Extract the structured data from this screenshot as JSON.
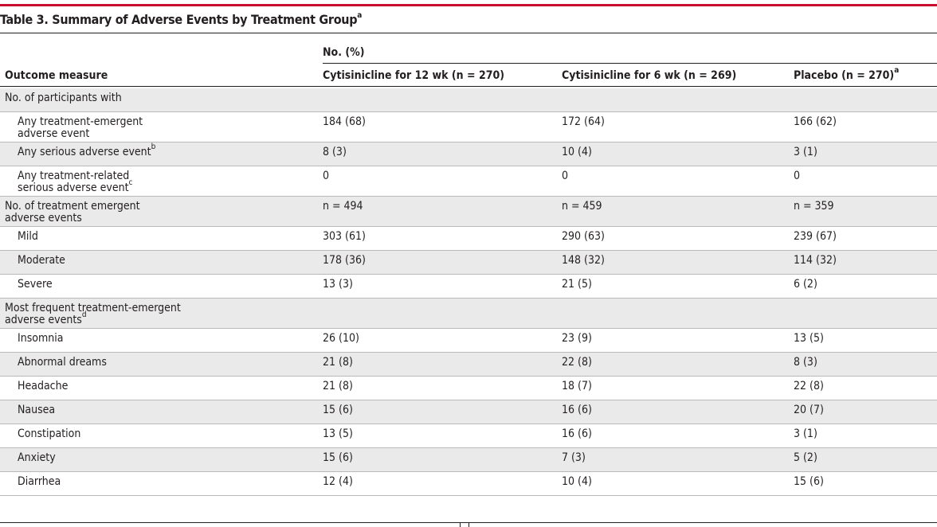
{
  "table": {
    "title": "Table 3. Summary of Adverse Events by Treatment Group",
    "title_footnote": "a",
    "group_header": "No. (%)",
    "columns": [
      {
        "label": "Outcome measure",
        "footnote": ""
      },
      {
        "label": "Cytisinicline for 12 wk (n = 270)",
        "footnote": ""
      },
      {
        "label": "Cytisinicline for 6 wk (n = 269)",
        "footnote": ""
      },
      {
        "label": "Placebo (n = 270)",
        "footnote": "a"
      }
    ],
    "rows": [
      {
        "kind": "section",
        "shaded": true,
        "label": [
          "No. of participants with"
        ],
        "footnote": "",
        "values": [
          "",
          "",
          ""
        ]
      },
      {
        "kind": "item",
        "shaded": false,
        "label": [
          "Any treatment-emergent",
          "adverse event"
        ],
        "footnote": "",
        "values": [
          "184 (68)",
          "172 (64)",
          "166 (62)"
        ]
      },
      {
        "kind": "item",
        "shaded": true,
        "label": [
          "Any serious adverse event"
        ],
        "footnote": "b",
        "values": [
          "8 (3)",
          "10 (4)",
          "3 (1)"
        ]
      },
      {
        "kind": "item",
        "shaded": false,
        "label": [
          "Any treatment-related",
          "serious adverse event"
        ],
        "footnote": "c",
        "values": [
          "0",
          "0",
          "0"
        ]
      },
      {
        "kind": "section",
        "shaded": true,
        "label": [
          "No. of treatment emergent",
          "adverse events"
        ],
        "footnote": "",
        "values": [
          "n = 494",
          "n = 459",
          "n = 359"
        ]
      },
      {
        "kind": "item",
        "shaded": false,
        "label": [
          "Mild"
        ],
        "footnote": "",
        "values": [
          "303 (61)",
          "290 (63)",
          "239 (67)"
        ]
      },
      {
        "kind": "item",
        "shaded": true,
        "label": [
          "Moderate"
        ],
        "footnote": "",
        "values": [
          "178 (36)",
          "148 (32)",
          "114 (32)"
        ]
      },
      {
        "kind": "item",
        "shaded": false,
        "label": [
          "Severe"
        ],
        "footnote": "",
        "values": [
          "13 (3)",
          "21 (5)",
          "6 (2)"
        ]
      },
      {
        "kind": "section",
        "shaded": true,
        "label": [
          "Most frequent treatment-emergent",
          "adverse events"
        ],
        "footnote": "d",
        "values": [
          "",
          "",
          ""
        ]
      },
      {
        "kind": "item",
        "shaded": false,
        "label": [
          "Insomnia"
        ],
        "footnote": "",
        "values": [
          "26 (10)",
          "23 (9)",
          "13 (5)"
        ]
      },
      {
        "kind": "item",
        "shaded": true,
        "label": [
          "Abnormal dreams"
        ],
        "footnote": "",
        "values": [
          "21 (8)",
          "22 (8)",
          "8 (3)"
        ]
      },
      {
        "kind": "item",
        "shaded": false,
        "label": [
          "Headache"
        ],
        "footnote": "",
        "values": [
          "21 (8)",
          "18 (7)",
          "22 (8)"
        ]
      },
      {
        "kind": "item",
        "shaded": true,
        "label": [
          "Nausea"
        ],
        "footnote": "",
        "values": [
          "15 (6)",
          "16 (6)",
          "20 (7)"
        ]
      },
      {
        "kind": "item",
        "shaded": false,
        "label": [
          "Constipation"
        ],
        "footnote": "",
        "values": [
          "13 (5)",
          "16 (6)",
          "3 (1)"
        ]
      },
      {
        "kind": "item",
        "shaded": true,
        "label": [
          "Anxiety"
        ],
        "footnote": "",
        "values": [
          "15 (6)",
          "7 (3)",
          "5 (2)"
        ]
      },
      {
        "kind": "item",
        "shaded": false,
        "label": [
          "Diarrhea"
        ],
        "footnote": "",
        "values": [
          "12 (4)",
          "10 (4)",
          "15 (6)"
        ]
      }
    ]
  },
  "colors": {
    "accent_rule": "#c8102e",
    "shade": "#eaeaeb",
    "text": "#231f20"
  }
}
